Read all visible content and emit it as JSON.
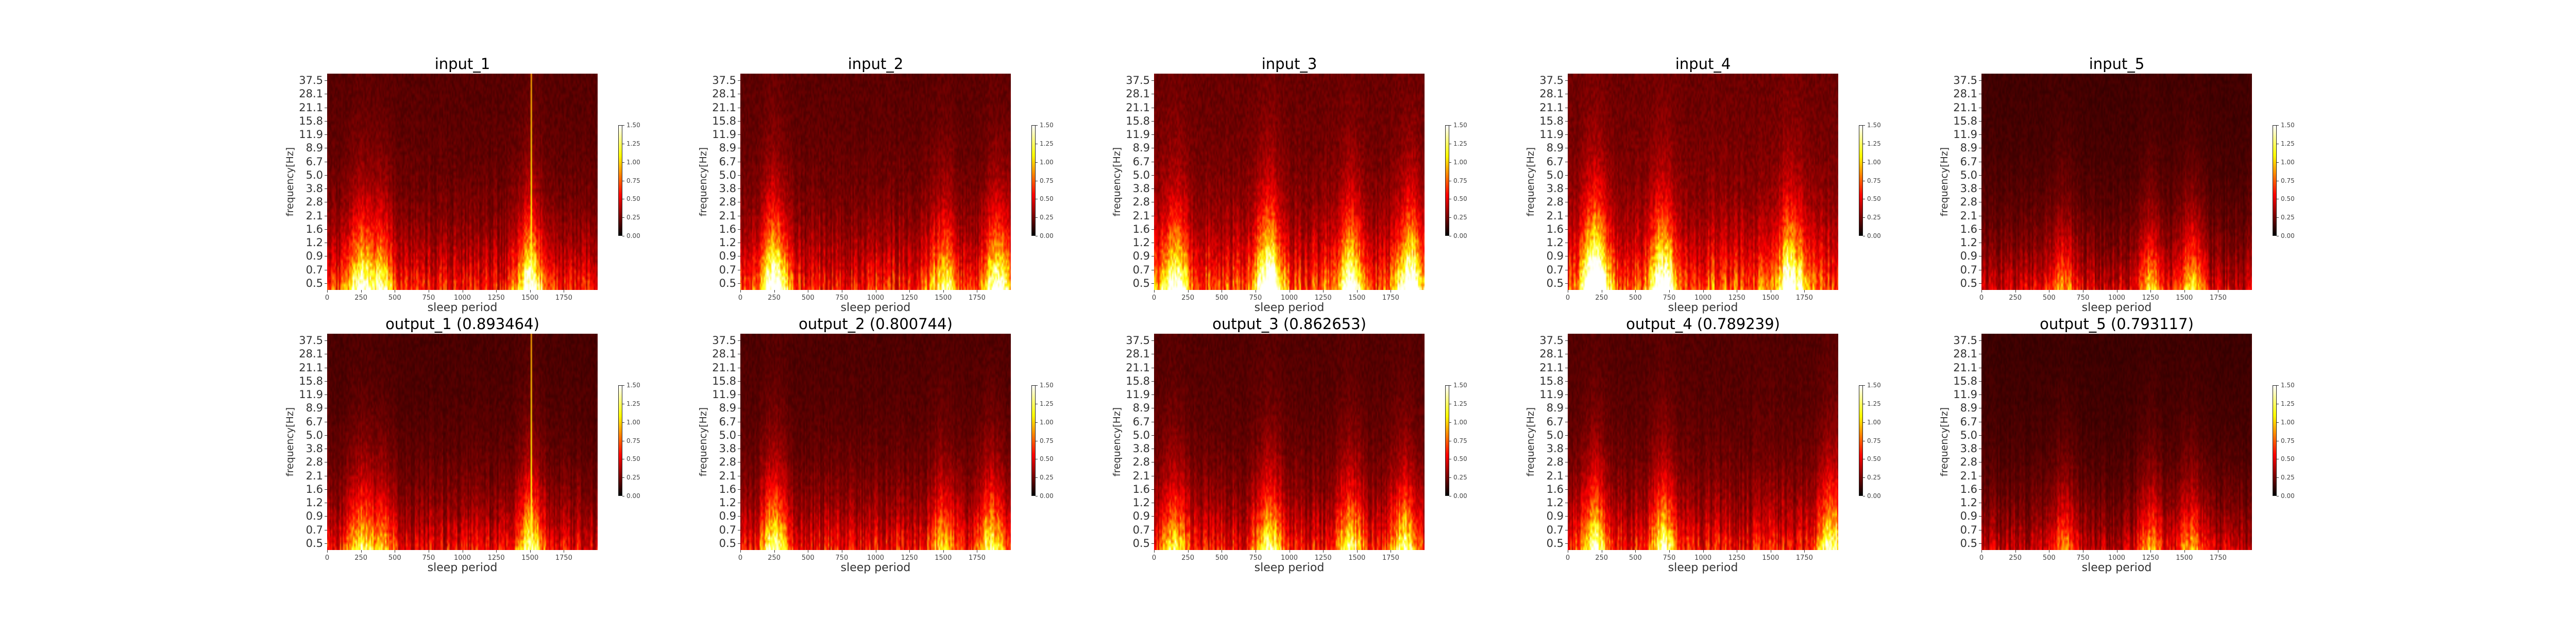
{
  "chart_data": [
    {
      "type": "heatmap",
      "title": "input_1",
      "xlabel": "sleep period",
      "ylabel": "frequency[Hz]",
      "xlim": [
        0,
        2000
      ],
      "seed": 11,
      "hotspots": [
        [
          240,
          1.1
        ],
        [
          400,
          0.9
        ],
        [
          1500,
          1.3
        ]
      ],
      "brightness": 1.0,
      "strip": 1510
    },
    {
      "type": "heatmap",
      "title": "input_2",
      "xlabel": "sleep period",
      "ylabel": "frequency[Hz]",
      "xlim": [
        0,
        2000
      ],
      "seed": 23,
      "hotspots": [
        [
          250,
          1.5
        ],
        [
          1500,
          0.8
        ],
        [
          1900,
          1.2
        ]
      ],
      "brightness": 1.05,
      "strip": null
    },
    {
      "type": "heatmap",
      "title": "input_3",
      "xlabel": "sleep period",
      "ylabel": "frequency[Hz]",
      "xlim": [
        0,
        2000
      ],
      "seed": 37,
      "hotspots": [
        [
          150,
          1.0
        ],
        [
          850,
          1.4
        ],
        [
          1450,
          1.1
        ],
        [
          1900,
          1.3
        ]
      ],
      "brightness": 1.2,
      "strip": null
    },
    {
      "type": "heatmap",
      "title": "input_4",
      "xlabel": "sleep period",
      "ylabel": "frequency[Hz]",
      "xlim": [
        0,
        2000
      ],
      "seed": 41,
      "hotspots": [
        [
          200,
          1.5
        ],
        [
          700,
          1.2
        ],
        [
          1650,
          1.1
        ]
      ],
      "brightness": 1.25,
      "strip": null
    },
    {
      "type": "heatmap",
      "title": "input_5",
      "xlabel": "sleep period",
      "ylabel": "frequency[Hz]",
      "xlim": [
        0,
        2000
      ],
      "seed": 53,
      "hotspots": [
        [
          600,
          0.8
        ],
        [
          1250,
          0.9
        ],
        [
          1550,
          1.0
        ]
      ],
      "brightness": 0.75,
      "strip": null
    },
    {
      "type": "heatmap",
      "title": "output_1 (0.893464)",
      "xlabel": "sleep period",
      "ylabel": "frequency[Hz]",
      "xlim": [
        0,
        2000
      ],
      "seed": 12,
      "hotspots": [
        [
          240,
          0.9
        ],
        [
          400,
          0.7
        ],
        [
          1500,
          1.2
        ]
      ],
      "brightness": 0.85,
      "strip": 1510
    },
    {
      "type": "heatmap",
      "title": "output_2 (0.800744)",
      "xlabel": "sleep period",
      "ylabel": "frequency[Hz]",
      "xlim": [
        0,
        2000
      ],
      "seed": 24,
      "hotspots": [
        [
          250,
          1.2
        ],
        [
          1500,
          0.7
        ],
        [
          1850,
          1.0
        ]
      ],
      "brightness": 0.9,
      "strip": null
    },
    {
      "type": "heatmap",
      "title": "output_3 (0.862653)",
      "xlabel": "sleep period",
      "ylabel": "frequency[Hz]",
      "xlim": [
        0,
        2000
      ],
      "seed": 38,
      "hotspots": [
        [
          150,
          0.8
        ],
        [
          850,
          1.1
        ],
        [
          1450,
          0.9
        ],
        [
          1850,
          1.0
        ]
      ],
      "brightness": 0.95,
      "strip": null
    },
    {
      "type": "heatmap",
      "title": "output_4 (0.789239)",
      "xlabel": "sleep period",
      "ylabel": "frequency[Hz]",
      "xlim": [
        0,
        2000
      ],
      "seed": 42,
      "hotspots": [
        [
          200,
          1.1
        ],
        [
          700,
          1.0
        ],
        [
          1950,
          1.2
        ]
      ],
      "brightness": 0.95,
      "strip": null
    },
    {
      "type": "heatmap",
      "title": "output_5 (0.793117)",
      "xlabel": "sleep period",
      "ylabel": "frequency[Hz]",
      "xlim": [
        0,
        2000
      ],
      "seed": 54,
      "hotspots": [
        [
          600,
          0.7
        ],
        [
          1250,
          0.8
        ],
        [
          1550,
          0.8
        ]
      ],
      "brightness": 0.7,
      "strip": null
    }
  ],
  "axes": {
    "y_ticks": [
      "0.5",
      "0.7",
      "0.9",
      "1.2",
      "1.6",
      "2.1",
      "2.8",
      "3.8",
      "5.0",
      "6.7",
      "8.9",
      "11.9",
      "15.8",
      "21.1",
      "28.1",
      "37.5"
    ],
    "x_ticks": [
      0,
      250,
      500,
      750,
      1000,
      1250,
      1500,
      1750
    ],
    "colorbar": {
      "min": 0.0,
      "max": 1.5,
      "ticks": [
        "0.00",
        "0.25",
        "0.50",
        "0.75",
        "1.00",
        "1.25",
        "1.50"
      ],
      "colormap": "hot"
    }
  }
}
